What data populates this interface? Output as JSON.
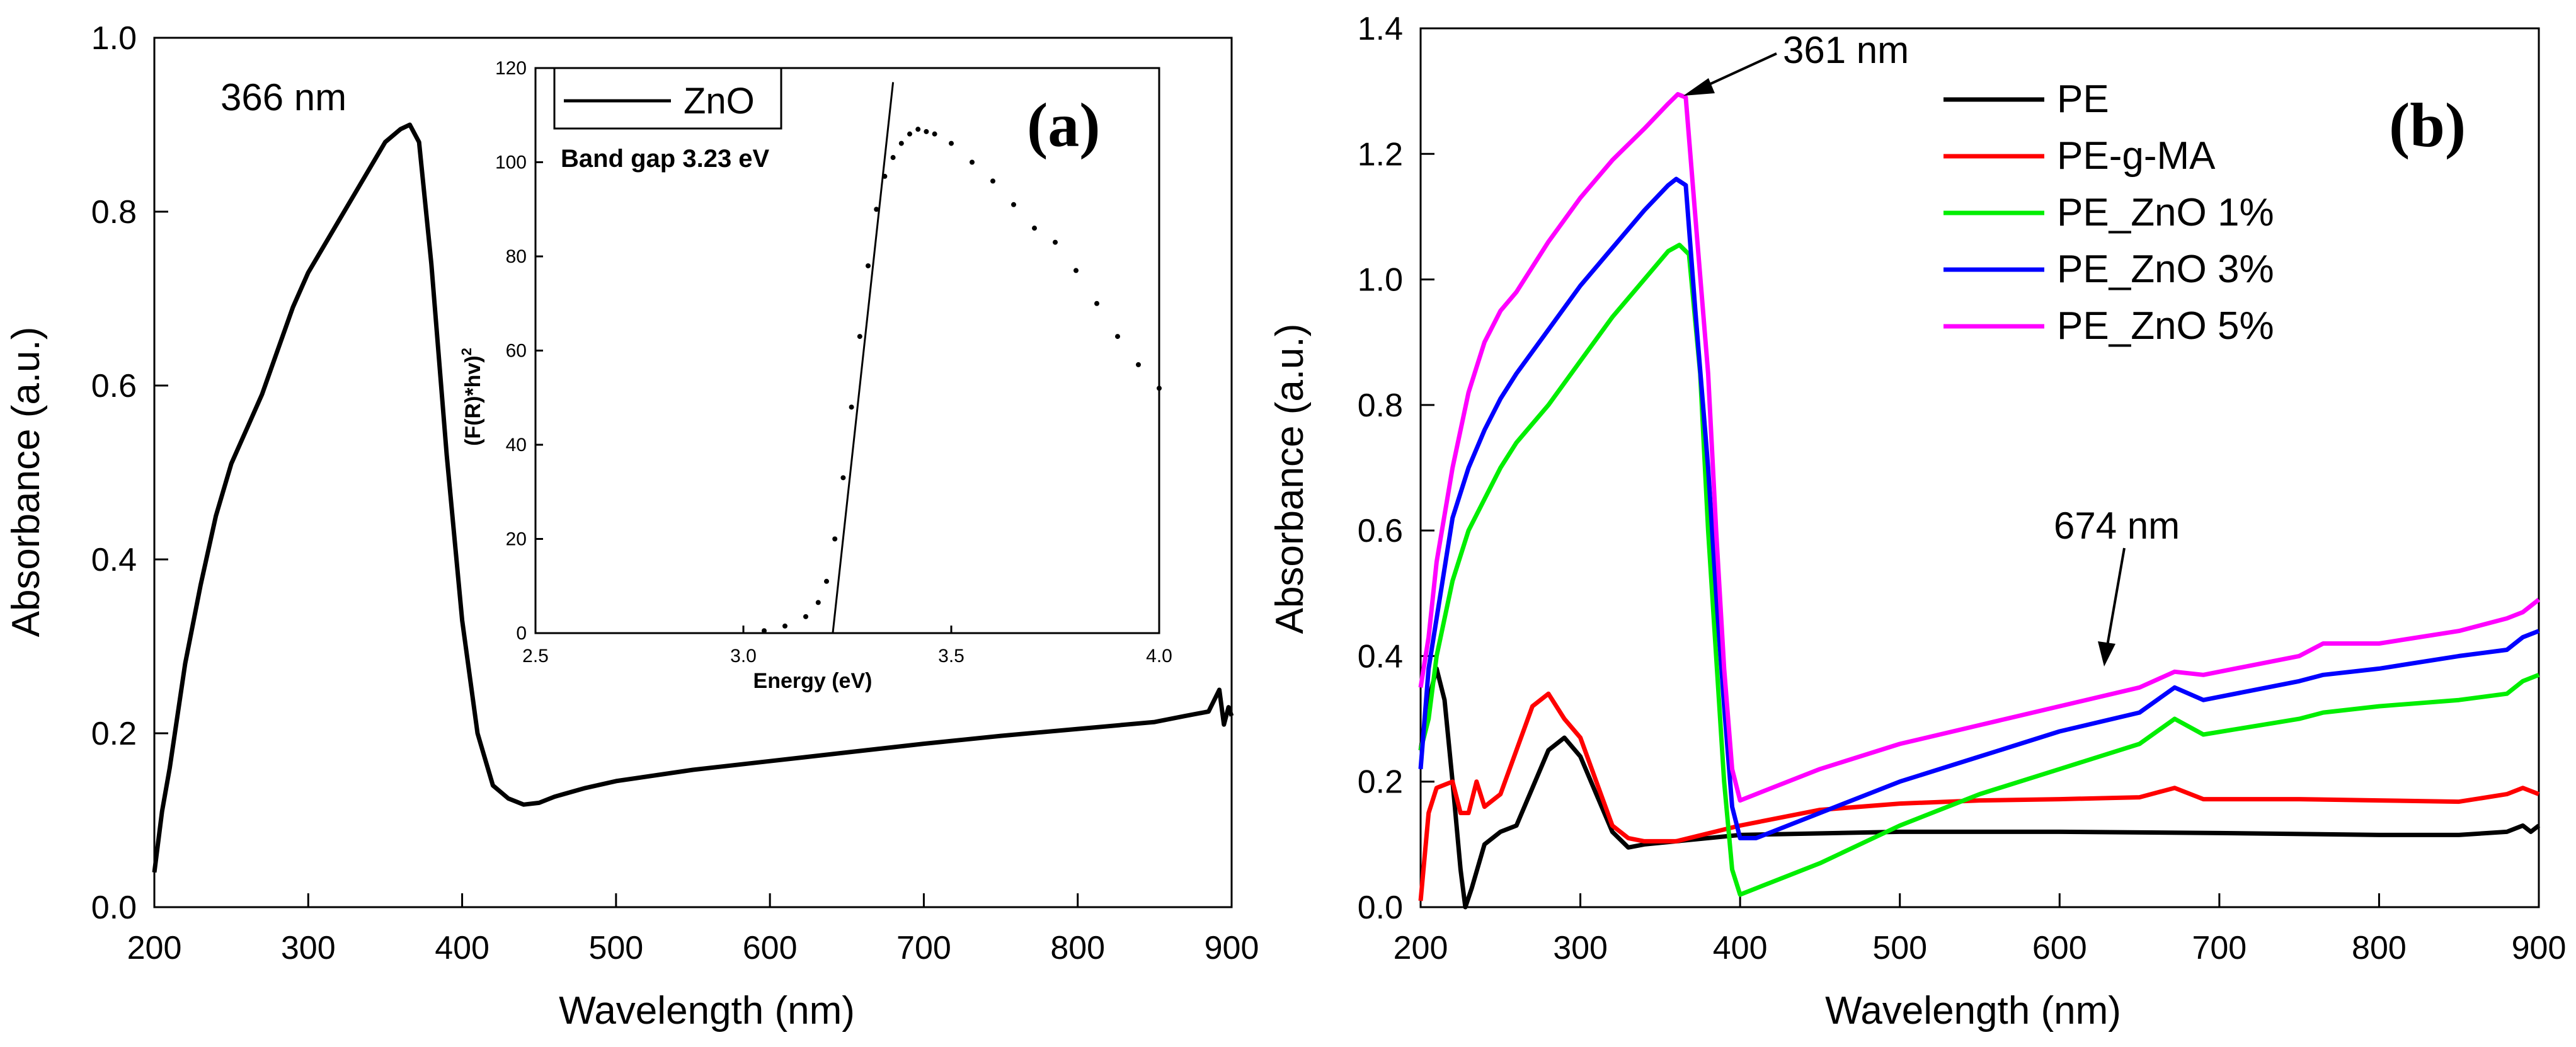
{
  "chart_data": [
    {
      "type": "line",
      "panel_label": "(a)",
      "xlabel": "Wavelength (nm)",
      "ylabel": "Absorbance (a.u.)",
      "xlim": [
        200,
        900
      ],
      "ylim": [
        0.0,
        1.0
      ],
      "xticks": [
        "200",
        "300",
        "400",
        "500",
        "600",
        "700",
        "800",
        "900"
      ],
      "yticks": [
        "0.0",
        "0.2",
        "0.4",
        "0.6",
        "0.8",
        "1.0"
      ],
      "annotations": [
        "366 nm"
      ],
      "series": [
        {
          "name": "ZnO",
          "color": "#000000",
          "x": [
            200,
            205,
            210,
            220,
            230,
            240,
            250,
            260,
            270,
            280,
            290,
            300,
            310,
            320,
            330,
            340,
            350,
            360,
            366,
            372,
            380,
            390,
            400,
            410,
            420,
            430,
            440,
            450,
            460,
            480,
            500,
            550,
            600,
            650,
            700,
            750,
            800,
            850,
            870,
            885,
            892,
            895,
            898,
            900
          ],
          "y": [
            0.04,
            0.11,
            0.16,
            0.28,
            0.37,
            0.45,
            0.51,
            0.55,
            0.59,
            0.64,
            0.69,
            0.73,
            0.76,
            0.79,
            0.82,
            0.85,
            0.88,
            0.895,
            0.9,
            0.88,
            0.74,
            0.52,
            0.33,
            0.2,
            0.14,
            0.125,
            0.118,
            0.12,
            0.127,
            0.137,
            0.145,
            0.158,
            0.168,
            0.178,
            0.188,
            0.197,
            0.205,
            0.213,
            0.22,
            0.225,
            0.25,
            0.21,
            0.23,
            0.22
          ]
        }
      ],
      "inset": {
        "xlabel": "Energy (eV)",
        "ylabel": "(F(R)*hv)",
        "ylabel_sup": "2",
        "legend": [
          "ZnO"
        ],
        "band_gap_label": "Band gap 3.23 eV",
        "xlim": [
          2.5,
          4.0
        ],
        "ylim": [
          0,
          120
        ],
        "xticks": [
          "2.5",
          "3.0",
          "3.5",
          "4.0"
        ],
        "yticks": [
          "0",
          "20",
          "40",
          "60",
          "80",
          "100",
          "120"
        ],
        "tangent": {
          "x": [
            3.215,
            3.36
          ],
          "y": [
            0,
            117
          ]
        },
        "x": [
          3.05,
          3.1,
          3.15,
          3.18,
          3.2,
          3.22,
          3.24,
          3.26,
          3.28,
          3.3,
          3.32,
          3.34,
          3.36,
          3.38,
          3.4,
          3.42,
          3.44,
          3.46,
          3.5,
          3.55,
          3.6,
          3.65,
          3.7,
          3.75,
          3.8,
          3.85,
          3.9,
          3.95,
          4.0
        ],
        "y": [
          0.5,
          1.5,
          3.5,
          6.5,
          11,
          20,
          33,
          48,
          63,
          78,
          90,
          97,
          101,
          104,
          106,
          107,
          106.5,
          106,
          104,
          100,
          96,
          91,
          86,
          83,
          77,
          70,
          63,
          57,
          52
        ]
      }
    },
    {
      "type": "line",
      "panel_label": "(b)",
      "xlabel": "Wavelength (nm)",
      "ylabel": "Absorbance (a.u.)",
      "xlim": [
        200,
        900
      ],
      "ylim": [
        0.0,
        1.4
      ],
      "xticks": [
        "200",
        "300",
        "400",
        "500",
        "600",
        "700",
        "800",
        "900"
      ],
      "yticks": [
        "0.0",
        "0.2",
        "0.4",
        "0.6",
        "0.8",
        "1.0",
        "1.2",
        "1.4"
      ],
      "annotations": [
        "361 nm",
        "674 nm"
      ],
      "series": [
        {
          "name": "PE",
          "color": "#000000",
          "x": [
            200,
            205,
            210,
            215,
            220,
            225,
            228,
            232,
            240,
            250,
            260,
            270,
            280,
            290,
            300,
            310,
            320,
            330,
            340,
            400,
            500,
            600,
            700,
            800,
            850,
            880,
            890,
            895,
            900
          ],
          "y": [
            0.25,
            0.33,
            0.38,
            0.33,
            0.2,
            0.06,
            0.0,
            0.03,
            0.1,
            0.12,
            0.13,
            0.19,
            0.25,
            0.27,
            0.24,
            0.18,
            0.12,
            0.095,
            0.1,
            0.115,
            0.12,
            0.12,
            0.118,
            0.115,
            0.115,
            0.12,
            0.13,
            0.12,
            0.13
          ]
        },
        {
          "name": "PE-g-MA",
          "color": "#ff0000",
          "x": [
            200,
            205,
            210,
            220,
            225,
            230,
            235,
            240,
            250,
            260,
            270,
            280,
            285,
            290,
            300,
            310,
            320,
            330,
            340,
            360,
            400,
            450,
            500,
            550,
            600,
            650,
            672,
            690,
            750,
            800,
            850,
            880,
            890,
            900
          ],
          "y": [
            0.01,
            0.15,
            0.19,
            0.2,
            0.15,
            0.15,
            0.2,
            0.16,
            0.18,
            0.25,
            0.32,
            0.34,
            0.32,
            0.3,
            0.27,
            0.2,
            0.13,
            0.11,
            0.105,
            0.105,
            0.13,
            0.155,
            0.165,
            0.17,
            0.172,
            0.175,
            0.19,
            0.172,
            0.172,
            0.17,
            0.168,
            0.18,
            0.19,
            0.18
          ]
        },
        {
          "name": "PE_ZnO 1%",
          "color": "#00ee00",
          "x": [
            200,
            205,
            210,
            220,
            230,
            240,
            250,
            260,
            280,
            300,
            320,
            340,
            355,
            362,
            368,
            375,
            380,
            385,
            390,
            395,
            400,
            410,
            450,
            500,
            550,
            600,
            650,
            672,
            690,
            750,
            765,
            800,
            850,
            880,
            890,
            900
          ],
          "y": [
            0.25,
            0.3,
            0.4,
            0.52,
            0.6,
            0.65,
            0.7,
            0.74,
            0.8,
            0.87,
            0.94,
            1.0,
            1.045,
            1.055,
            1.04,
            0.85,
            0.6,
            0.4,
            0.2,
            0.06,
            0.02,
            0.03,
            0.07,
            0.13,
            0.18,
            0.22,
            0.26,
            0.3,
            0.275,
            0.3,
            0.31,
            0.32,
            0.33,
            0.34,
            0.36,
            0.37
          ]
        },
        {
          "name": "PE_ZnO 3%",
          "color": "#0000ff",
          "x": [
            200,
            205,
            210,
            220,
            230,
            240,
            250,
            260,
            280,
            300,
            320,
            340,
            355,
            360,
            366,
            372,
            380,
            385,
            390,
            395,
            400,
            410,
            450,
            500,
            550,
            600,
            650,
            672,
            690,
            750,
            765,
            800,
            850,
            880,
            890,
            900
          ],
          "y": [
            0.22,
            0.38,
            0.46,
            0.62,
            0.7,
            0.76,
            0.81,
            0.85,
            0.92,
            0.99,
            1.05,
            1.11,
            1.15,
            1.16,
            1.15,
            0.95,
            0.7,
            0.5,
            0.32,
            0.16,
            0.11,
            0.11,
            0.15,
            0.2,
            0.24,
            0.28,
            0.31,
            0.35,
            0.33,
            0.36,
            0.37,
            0.38,
            0.4,
            0.41,
            0.43,
            0.44
          ]
        },
        {
          "name": "PE_ZnO 5%",
          "color": "#ff00ff",
          "x": [
            200,
            205,
            210,
            220,
            230,
            240,
            250,
            260,
            280,
            300,
            320,
            340,
            355,
            361,
            366,
            372,
            380,
            385,
            390,
            395,
            400,
            410,
            450,
            500,
            550,
            600,
            650,
            672,
            690,
            750,
            765,
            800,
            850,
            880,
            890,
            900
          ],
          "y": [
            0.35,
            0.43,
            0.55,
            0.7,
            0.82,
            0.9,
            0.95,
            0.98,
            1.06,
            1.13,
            1.19,
            1.24,
            1.28,
            1.295,
            1.29,
            1.1,
            0.85,
            0.6,
            0.38,
            0.22,
            0.17,
            0.18,
            0.22,
            0.26,
            0.29,
            0.32,
            0.35,
            0.375,
            0.37,
            0.4,
            0.42,
            0.42,
            0.44,
            0.46,
            0.47,
            0.49
          ]
        }
      ]
    }
  ]
}
